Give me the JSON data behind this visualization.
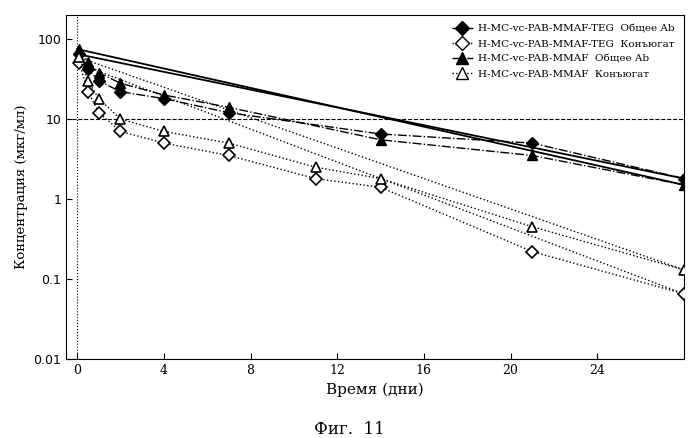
{
  "title": "Фиг.  11",
  "xlabel": "Время (дни)",
  "ylabel": "Концентрация (мкг/мл)",
  "xlim": [
    -0.5,
    28
  ],
  "ylim_log": [
    0.01,
    200
  ],
  "xticks": [
    0,
    4,
    8,
    12,
    16,
    20,
    24
  ],
  "yticks": [
    0.01,
    0.1,
    1,
    10,
    100
  ],
  "TEG_total_x": [
    0.1,
    0.5,
    1,
    2,
    4,
    7,
    14,
    21,
    28
  ],
  "TEG_total_y": [
    65,
    42,
    30,
    22,
    18,
    12,
    6.5,
    5.0,
    1.8
  ],
  "TEG_conj_x": [
    0.1,
    0.5,
    1,
    2,
    4,
    7,
    11,
    14,
    21,
    28
  ],
  "TEG_conj_y": [
    50,
    22,
    12,
    7,
    5,
    3.5,
    1.8,
    1.4,
    0.22,
    0.065
  ],
  "MMAF_total_x": [
    0.1,
    0.5,
    1,
    2,
    4,
    7,
    14,
    21,
    28
  ],
  "MMAF_total_y": [
    75,
    52,
    38,
    28,
    20,
    14,
    5.5,
    3.5,
    1.5
  ],
  "MMAF_conj_x": [
    0.1,
    0.5,
    1,
    2,
    4,
    7,
    11,
    14,
    21,
    28
  ],
  "MMAF_conj_y": [
    60,
    30,
    18,
    10,
    7,
    5.0,
    2.5,
    1.8,
    0.45,
    0.13
  ],
  "TEG_total_fit_x": [
    0,
    28
  ],
  "TEG_total_fit_y": [
    65,
    1.8
  ],
  "TEG_conj_fit_x": [
    0,
    28
  ],
  "TEG_conj_fit_y": [
    50,
    0.065
  ],
  "MMAF_total_fit_x": [
    0,
    28
  ],
  "MMAF_total_fit_y": [
    75,
    1.5
  ],
  "MMAF_conj_fit_x": [
    0,
    28
  ],
  "MMAF_conj_fit_y": [
    60,
    0.13
  ],
  "hline1_y": 10,
  "hline2_y": 0.01,
  "legend_labels": [
    "H-MC-vc-PAB-MMAF-TEG  Общее Ab",
    "H-MC-vc-PAB-MMAF-TEG  Конъюгат",
    "H-MC-vc-PAB-MMAF  Общее Ab",
    "H-MC-vc-PAB-MMAF  Конъюгат"
  ],
  "bg_color": "#ffffff",
  "line_color": "#000000"
}
